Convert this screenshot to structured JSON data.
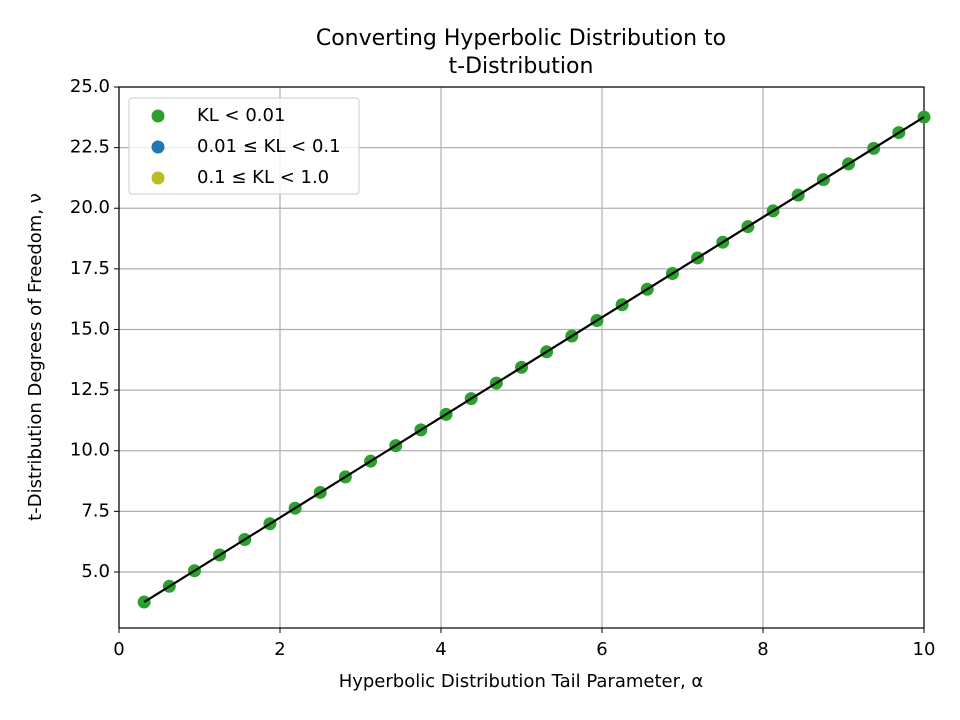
{
  "chart_data": {
    "type": "scatter",
    "title": [
      "Converting Hyperbolic Distribution to",
      "t-Distribution"
    ],
    "x_label": "Hyperbolic Distribution Tail Parameter, α",
    "y_label": "t-Distribution Degrees of Freedom, ν",
    "xlim": [
      0,
      10
    ],
    "ylim": [
      2.69,
      25
    ],
    "xticks": [
      0,
      2,
      4,
      6,
      8,
      10
    ],
    "yticks": [
      {
        "value": 5,
        "label": "5.0"
      },
      7.5,
      {
        "value": 10,
        "label": "10.0"
      },
      12.5,
      {
        "value": 15,
        "label": "15.0"
      },
      17.5,
      {
        "value": 20,
        "label": "20.0"
      },
      22.5,
      {
        "value": 25,
        "label": "25.0"
      }
    ],
    "grid": true,
    "legend": "upper left",
    "series": [
      {
        "name": "KL < 0.01",
        "color": "#2ca02c",
        "x": [
          0.3125,
          0.625,
          0.9375,
          1.25,
          1.5625,
          1.875,
          2.1875,
          2.5,
          2.8125,
          3.125,
          3.4375,
          3.75,
          4.0625,
          4.375,
          4.6875,
          5,
          5.3125,
          5.625,
          5.9375,
          6.25,
          6.5625,
          6.875,
          7.1875,
          7.5,
          7.8125,
          8.125,
          8.4375,
          8.75,
          9.0625,
          9.375,
          9.6875,
          10
        ],
        "values": [
          3.76,
          4.41,
          5.05,
          5.7,
          6.34,
          6.99,
          7.63,
          8.28,
          8.92,
          9.57,
          10.21,
          10.86,
          11.5,
          12.15,
          12.79,
          13.44,
          14.08,
          14.73,
          15.37,
          16.02,
          16.66,
          17.31,
          17.95,
          18.6,
          19.24,
          19.89,
          20.54,
          21.18,
          21.83,
          22.47,
          23.12,
          23.76
        ]
      },
      {
        "name": "0.01 ≤ KL < 0.1",
        "color": "#1f77b4",
        "x": [],
        "values": []
      },
      {
        "name": "0.1 ≤ KL < 1.0",
        "color": "#bcbd22",
        "x": [],
        "values": []
      }
    ],
    "fit_line": {
      "color": "#000000",
      "x": [
        0.3125,
        10
      ],
      "values": [
        3.76,
        23.76
      ]
    }
  }
}
